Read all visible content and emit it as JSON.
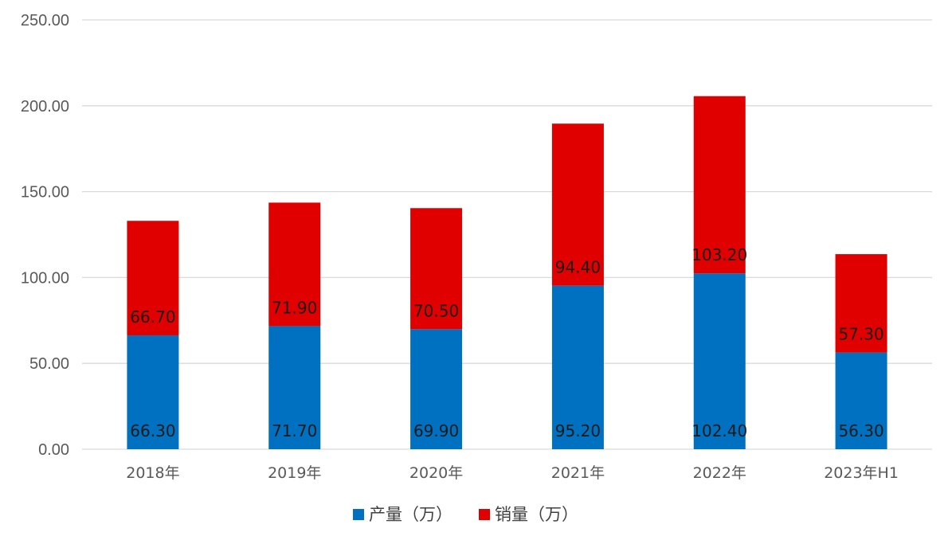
{
  "chart_data": {
    "type": "bar",
    "stacked": true,
    "categories": [
      "2018年",
      "2019年",
      "2020年",
      "2021年",
      "2022年",
      "2023年H1"
    ],
    "series": [
      {
        "name": "产量（万）",
        "color": "#0070C0",
        "values": [
          66.3,
          71.7,
          69.9,
          95.2,
          102.4,
          56.3
        ]
      },
      {
        "name": "销量（万）",
        "color": "#E00000",
        "values": [
          66.7,
          71.9,
          70.5,
          94.4,
          103.2,
          57.3
        ]
      }
    ],
    "ylim": [
      0,
      250
    ],
    "yticks": [
      "0.00",
      "50.00",
      "100.00",
      "150.00",
      "200.00",
      "250.00"
    ],
    "grid": true,
    "legend": "bottom-center",
    "title": "",
    "xlabel": "",
    "ylabel": ""
  }
}
